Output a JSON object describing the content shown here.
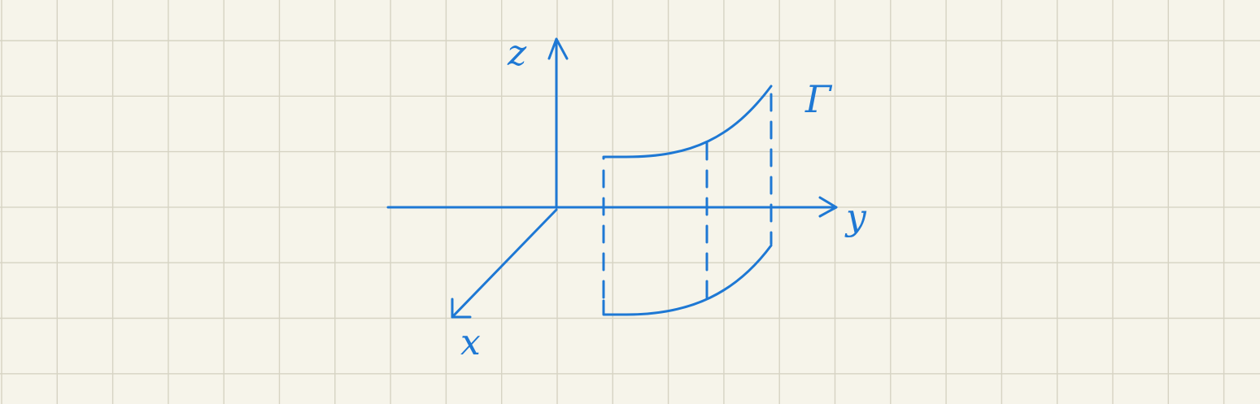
{
  "axes": {
    "z_label": "z",
    "y_label": "y",
    "x_label": "x"
  },
  "curve": {
    "label": "Γ"
  },
  "colors": {
    "ink": "#1e78d4",
    "paper": "#f6f4ea",
    "grid": "#d6d3c3"
  }
}
